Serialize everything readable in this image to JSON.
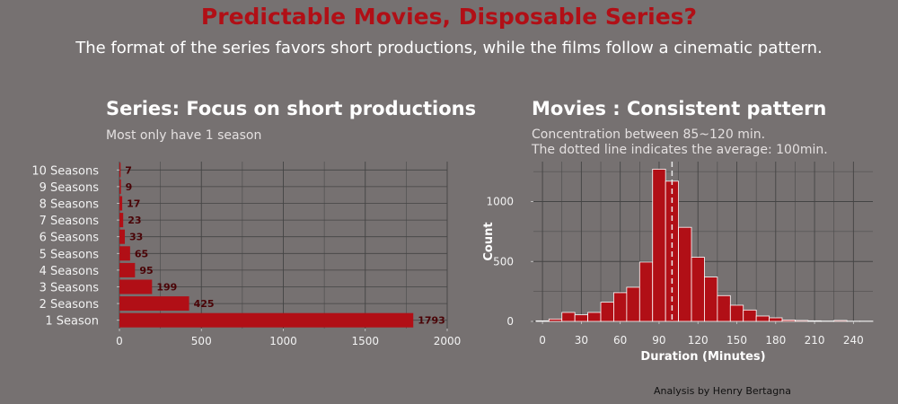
{
  "header": {
    "title": "Predictable Movies, Disposable Series?",
    "subtitle": "The format of the series favors short productions, while the films follow a cinematic pattern."
  },
  "credit": "Analysis by Henry Bertagna",
  "colors": {
    "background": "#767171",
    "accent": "#b10f16",
    "label_dark": "#4a0306"
  },
  "chart_data": [
    {
      "type": "bar",
      "orientation": "horizontal",
      "title": "Series: Focus on short productions",
      "subtitle": "Most only have 1 season",
      "categories": [
        "10 Seasons",
        "9 Seasons",
        "8 Seasons",
        "7 Seasons",
        "6 Seasons",
        "5 Seasons",
        "4 Seasons",
        "3 Seasons",
        "2 Seasons",
        "1 Season"
      ],
      "values": [
        7,
        9,
        17,
        23,
        33,
        65,
        95,
        199,
        425,
        1793
      ],
      "xlim": [
        0,
        2000
      ],
      "xticks": [
        0,
        500,
        1000,
        1500,
        2000
      ],
      "xlabel": "",
      "ylabel": "",
      "grid": true
    },
    {
      "type": "bar",
      "subtype": "histogram",
      "title": "Movies : Consistent pattern",
      "subtitle_lines": [
        "Concentration between 85~120 min.",
        "The dotted line indicates the average: 100min."
      ],
      "bin_width": 10,
      "bin_centers": [
        0,
        10,
        20,
        30,
        40,
        50,
        60,
        70,
        80,
        90,
        100,
        110,
        120,
        130,
        140,
        150,
        160,
        170,
        180,
        190,
        200,
        210,
        220,
        230,
        240,
        250
      ],
      "values": [
        5,
        20,
        75,
        55,
        75,
        160,
        240,
        285,
        495,
        1270,
        1170,
        785,
        535,
        370,
        215,
        135,
        95,
        45,
        30,
        12,
        8,
        5,
        3,
        8,
        2,
        2
      ],
      "mean_line": 100,
      "xlim": [
        -7,
        255
      ],
      "xticks": [
        0,
        30,
        60,
        90,
        120,
        150,
        180,
        210,
        240
      ],
      "ylim": [
        0,
        1300
      ],
      "yticks": [
        0,
        500,
        1000
      ],
      "xlabel": "Duration (Minutes)",
      "ylabel": "Count",
      "grid": true
    }
  ]
}
